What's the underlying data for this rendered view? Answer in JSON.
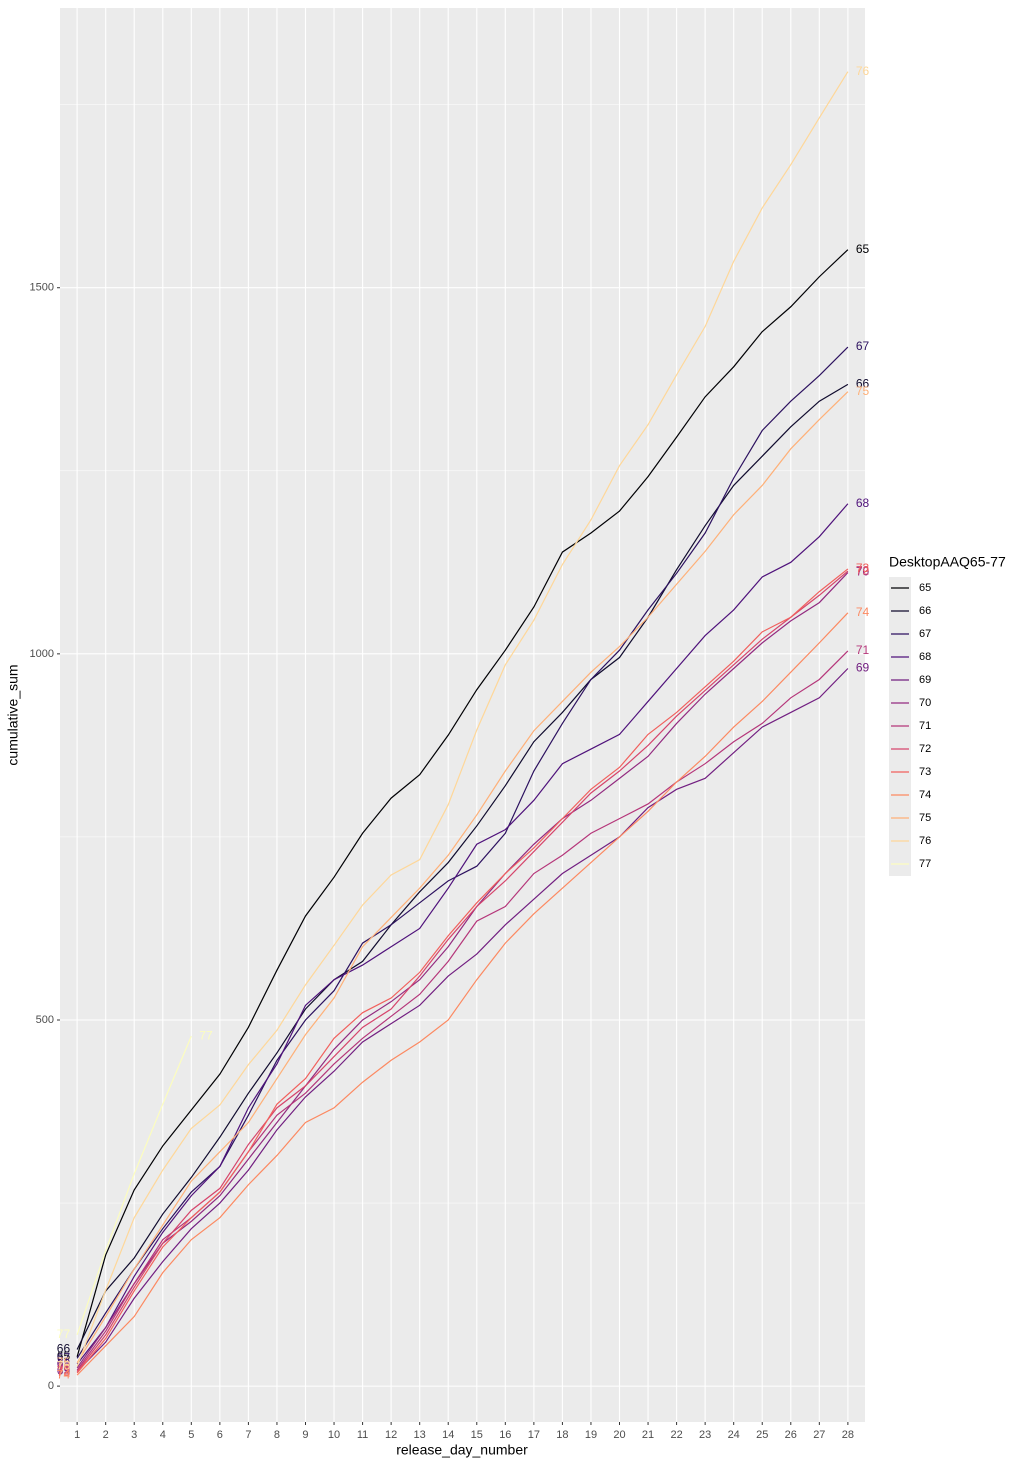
{
  "chart_data": {
    "type": "line",
    "x_label": "release_day_number",
    "y_label": "cumulative_sum",
    "legend_title": "DesktopAAQ65-77",
    "legend_position": "right",
    "x": [
      1,
      2,
      3,
      4,
      5,
      6,
      7,
      8,
      9,
      10,
      11,
      12,
      13,
      14,
      15,
      16,
      17,
      18,
      19,
      20,
      21,
      22,
      23,
      24,
      25,
      26,
      27,
      28
    ],
    "xlim": [
      0.4,
      28.6
    ],
    "xticks": [
      1,
      2,
      3,
      4,
      5,
      6,
      7,
      8,
      9,
      10,
      11,
      12,
      13,
      14,
      15,
      16,
      17,
      18,
      19,
      20,
      21,
      22,
      23,
      24,
      25,
      26,
      27,
      28
    ],
    "ylim": [
      -49,
      1882
    ],
    "yticks": [
      0,
      500,
      1000,
      1500
    ],
    "yminor": [
      250,
      750,
      1250,
      1750
    ],
    "grid": true,
    "series": [
      {
        "name": "65",
        "color": "#000004",
        "values": [
          40,
          179,
          268,
          328,
          377,
          426,
          490,
          568,
          642,
          695,
          755,
          803,
          835,
          889,
          951,
          1005,
          1064,
          1139,
          1165,
          1195,
          1242,
          1296,
          1351,
          1392,
          1440,
          1474,
          1515,
          1552
        ]
      },
      {
        "name": "66",
        "color": "#100b2e",
        "values": [
          50,
          130,
          175,
          235,
          285,
          340,
          400,
          455,
          515,
          555,
          580,
          630,
          675,
          715,
          765,
          820,
          880,
          920,
          965,
          995,
          1050,
          1115,
          1175,
          1230,
          1270,
          1310,
          1345,
          1368
        ]
      },
      {
        "name": "67",
        "color": "#2c115f",
        "values": [
          38,
          100,
          160,
          215,
          265,
          300,
          370,
          445,
          500,
          540,
          605,
          630,
          660,
          690,
          710,
          755,
          840,
          905,
          965,
          1005,
          1060,
          1110,
          1165,
          1240,
          1305,
          1345,
          1380,
          1419
        ]
      },
      {
        "name": "68",
        "color": "#4f127b",
        "values": [
          30,
          80,
          150,
          210,
          260,
          300,
          380,
          440,
          520,
          555,
          575,
          600,
          625,
          680,
          740,
          760,
          800,
          850,
          870,
          890,
          935,
          980,
          1025,
          1060,
          1105,
          1125,
          1160,
          1205
        ]
      },
      {
        "name": "69",
        "color": "#721f81",
        "values": [
          20,
          60,
          120,
          170,
          215,
          250,
          295,
          350,
          395,
          430,
          470,
          495,
          520,
          560,
          590,
          630,
          665,
          700,
          725,
          750,
          790,
          815,
          830,
          865,
          900,
          920,
          940,
          980
        ]
      },
      {
        "name": "70",
        "color": "#932b80",
        "values": [
          25,
          80,
          140,
          195,
          225,
          260,
          310,
          360,
          410,
          460,
          500,
          525,
          555,
          600,
          655,
          700,
          740,
          775,
          800,
          830,
          860,
          905,
          945,
          980,
          1015,
          1045,
          1070,
          1111
        ]
      },
      {
        "name": "71",
        "color": "#b5367a",
        "values": [
          22,
          75,
          140,
          200,
          230,
          265,
          320,
          370,
          400,
          440,
          475,
          505,
          535,
          580,
          635,
          655,
          700,
          725,
          755,
          775,
          795,
          825,
          850,
          880,
          905,
          940,
          965,
          1004
        ]
      },
      {
        "name": "72",
        "color": "#d6456c",
        "values": [
          20,
          70,
          135,
          195,
          240,
          270,
          330,
          380,
          410,
          450,
          490,
          515,
          560,
          610,
          655,
          690,
          730,
          770,
          810,
          840,
          875,
          915,
          950,
          985,
          1020,
          1050,
          1080,
          1113
        ]
      },
      {
        "name": "73",
        "color": "#f1605d",
        "values": [
          18,
          65,
          130,
          190,
          230,
          265,
          320,
          385,
          420,
          475,
          510,
          530,
          565,
          615,
          660,
          700,
          735,
          775,
          815,
          845,
          890,
          920,
          955,
          990,
          1030,
          1050,
          1085,
          1116
        ]
      },
      {
        "name": "74",
        "color": "#fc8961",
        "values": [
          15,
          55,
          95,
          155,
          200,
          230,
          275,
          315,
          360,
          380,
          415,
          445,
          470,
          500,
          555,
          605,
          645,
          680,
          715,
          750,
          785,
          825,
          860,
          900,
          935,
          975,
          1015,
          1056
        ]
      },
      {
        "name": "75",
        "color": "#feb078",
        "values": [
          32,
          95,
          160,
          220,
          280,
          320,
          360,
          420,
          480,
          530,
          600,
          640,
          680,
          725,
          780,
          840,
          895,
          935,
          975,
          1010,
          1050,
          1095,
          1140,
          1190,
          1230,
          1280,
          1320,
          1358
        ]
      },
      {
        "name": "76",
        "color": "#fed799",
        "values": [
          27,
          131,
          230,
          295,
          352,
          384,
          439,
          486,
          548,
          602,
          657,
          698,
          719,
          794,
          896,
          985,
          1046,
          1122,
          1183,
          1257,
          1313,
          1381,
          1447,
          1536,
          1609,
          1668,
          1732,
          1795
        ]
      },
      {
        "name": "77",
        "color": "#fcfdbf",
        "values": [
          70,
          185,
          290,
          385,
          478,
          null,
          null,
          null,
          null,
          null,
          null,
          null,
          null,
          null,
          null,
          null,
          null,
          null,
          null,
          null,
          null,
          null,
          null,
          null,
          null,
          null,
          null,
          null
        ]
      }
    ]
  }
}
